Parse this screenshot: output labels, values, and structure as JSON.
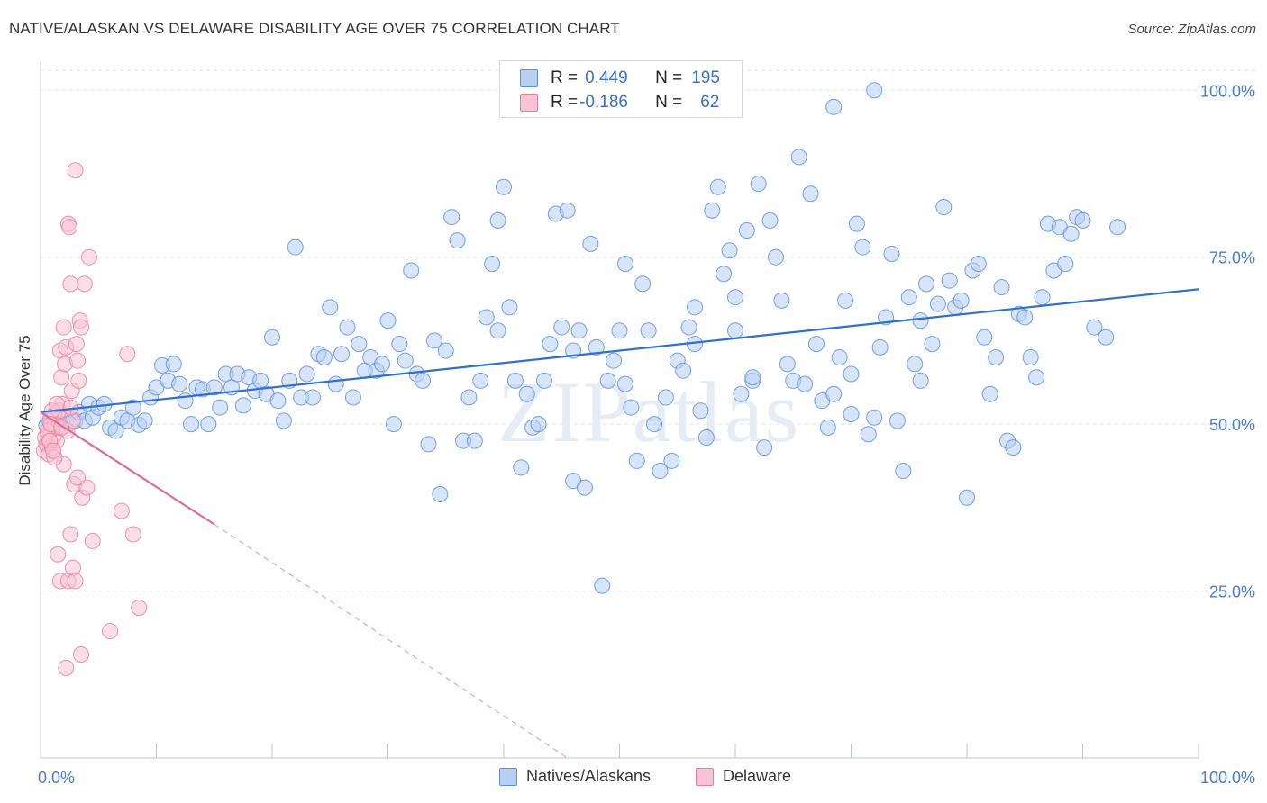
{
  "title": "NATIVE/ALASKAN VS DELAWARE DISABILITY AGE OVER 75 CORRELATION CHART",
  "source": "Source: ZipAtlas.com",
  "watermark": "ZIPatlas",
  "stats": [
    {
      "r_label": "R = ",
      "r_value": "0.449",
      "n_label": "N = ",
      "n_value": "195",
      "color": "#5b8fe0",
      "fill": "#b8d0f4"
    },
    {
      "r_label": "R = ",
      "r_value": "-0.186",
      "n_label": "N = ",
      "n_value": "62",
      "color": "#e57fa0",
      "fill": "#f9c3d4"
    }
  ],
  "chart_data": {
    "type": "scatter",
    "title": "NATIVE/ALASKAN VS DELAWARE DISABILITY AGE OVER 75 CORRELATION CHART",
    "xlabel": "",
    "ylabel": "Disability Age Over 75",
    "xlim": [
      0,
      100
    ],
    "ylim": [
      0,
      103
    ],
    "x_tick_labels": [
      "0.0%",
      "100.0%"
    ],
    "y_tick_labels": [
      "25.0%",
      "50.0%",
      "75.0%",
      "100.0%"
    ],
    "y_ticks": [
      25,
      50,
      75,
      100
    ],
    "grid": true,
    "legend_position": "bottom",
    "series": [
      {
        "name": "Natives/Alaskans",
        "color": "#5b8fe0",
        "fill": "#b8d0f4",
        "trend": {
          "x": [
            0,
            100
          ],
          "y": [
            51.8,
            70.2
          ],
          "style": "solid"
        },
        "points": [
          [
            0.5,
            49.8
          ],
          [
            0.8,
            50.5
          ],
          [
            1.2,
            50.6
          ],
          [
            1.5,
            49.6
          ],
          [
            2.0,
            51.2
          ],
          [
            2.5,
            50.1
          ],
          [
            3.0,
            50.5
          ],
          [
            3.3,
            51.8
          ],
          [
            3.8,
            50.5
          ],
          [
            4.2,
            53.0
          ],
          [
            4.5,
            51.0
          ],
          [
            5.0,
            52.5
          ],
          [
            5.5,
            53.0
          ],
          [
            6.0,
            49.5
          ],
          [
            6.5,
            49.0
          ],
          [
            7.0,
            51.0
          ],
          [
            7.5,
            50.5
          ],
          [
            8.0,
            52.5
          ],
          [
            8.5,
            49.9
          ],
          [
            9.0,
            50.5
          ],
          [
            9.5,
            54.0
          ],
          [
            10.0,
            55.5
          ],
          [
            10.5,
            58.8
          ],
          [
            11.0,
            56.5
          ],
          [
            11.5,
            59.0
          ],
          [
            12.0,
            56.0
          ],
          [
            12.5,
            53.5
          ],
          [
            13.0,
            50.0
          ],
          [
            13.5,
            55.5
          ],
          [
            14.0,
            55.2
          ],
          [
            14.5,
            50.0
          ],
          [
            15.0,
            55.5
          ],
          [
            15.5,
            52.5
          ],
          [
            16.0,
            57.5
          ],
          [
            16.5,
            55.5
          ],
          [
            17.0,
            57.5
          ],
          [
            17.5,
            52.8
          ],
          [
            18.0,
            57.0
          ],
          [
            18.5,
            55.0
          ],
          [
            19.0,
            56.5
          ],
          [
            19.5,
            54.5
          ],
          [
            20.0,
            63.0
          ],
          [
            20.5,
            53.5
          ],
          [
            21.0,
            50.5
          ],
          [
            21.5,
            56.5
          ],
          [
            22.0,
            76.5
          ],
          [
            22.5,
            54.0
          ],
          [
            23.0,
            57.5
          ],
          [
            23.5,
            54.0
          ],
          [
            24.0,
            60.5
          ],
          [
            24.5,
            60.0
          ],
          [
            25.0,
            67.5
          ],
          [
            25.5,
            56.0
          ],
          [
            26.0,
            60.5
          ],
          [
            26.5,
            64.5
          ],
          [
            27.0,
            54.0
          ],
          [
            27.5,
            62.0
          ],
          [
            28.0,
            58.0
          ],
          [
            28.5,
            60.0
          ],
          [
            29.0,
            58.0
          ],
          [
            29.5,
            59.0
          ],
          [
            30.0,
            65.5
          ],
          [
            30.5,
            50.0
          ],
          [
            31.0,
            62.0
          ],
          [
            31.5,
            59.5
          ],
          [
            32.0,
            73.0
          ],
          [
            32.5,
            57.5
          ],
          [
            33.0,
            56.5
          ],
          [
            33.5,
            47.0
          ],
          [
            34.0,
            62.5
          ],
          [
            34.5,
            39.5
          ],
          [
            35.0,
            61.0
          ],
          [
            35.5,
            81.0
          ],
          [
            36.0,
            77.5
          ],
          [
            36.5,
            47.5
          ],
          [
            37.0,
            54.0
          ],
          [
            37.5,
            47.5
          ],
          [
            38.0,
            56.5
          ],
          [
            38.5,
            66.0
          ],
          [
            39.0,
            74.0
          ],
          [
            39.5,
            64.0
          ],
          [
            40.0,
            85.5
          ],
          [
            40.5,
            67.5
          ],
          [
            41.0,
            56.5
          ],
          [
            41.5,
            43.5
          ],
          [
            42.0,
            54.5
          ],
          [
            42.5,
            49.5
          ],
          [
            43.0,
            50.0
          ],
          [
            43.5,
            56.5
          ],
          [
            44.0,
            62.0
          ],
          [
            44.5,
            81.5
          ],
          [
            45.0,
            64.5
          ],
          [
            45.5,
            82.0
          ],
          [
            46.0,
            41.5
          ],
          [
            46.5,
            64.0
          ],
          [
            47.0,
            40.5
          ],
          [
            47.5,
            77.0
          ],
          [
            48.0,
            61.5
          ],
          [
            48.5,
            25.8
          ],
          [
            49.0,
            56.5
          ],
          [
            49.5,
            59.5
          ],
          [
            50.0,
            64.0
          ],
          [
            50.5,
            74.0
          ],
          [
            51.0,
            52.5
          ],
          [
            51.5,
            44.5
          ],
          [
            52.0,
            71.0
          ],
          [
            52.5,
            64.0
          ],
          [
            53.0,
            50.0
          ],
          [
            53.5,
            43.0
          ],
          [
            54.0,
            54.0
          ],
          [
            54.5,
            44.5
          ],
          [
            55.0,
            59.5
          ],
          [
            55.5,
            58.0
          ],
          [
            56.0,
            64.5
          ],
          [
            56.5,
            62.0
          ],
          [
            57.0,
            52.0
          ],
          [
            57.5,
            48.0
          ],
          [
            58.0,
            82.0
          ],
          [
            58.5,
            85.5
          ],
          [
            59.0,
            72.5
          ],
          [
            59.5,
            76.0
          ],
          [
            60.0,
            69.0
          ],
          [
            60.5,
            54.5
          ],
          [
            61.0,
            79.0
          ],
          [
            61.5,
            56.5
          ],
          [
            62.0,
            86.0
          ],
          [
            62.5,
            46.5
          ],
          [
            63.0,
            80.5
          ],
          [
            63.5,
            75.0
          ],
          [
            64.0,
            68.5
          ],
          [
            64.5,
            59.0
          ],
          [
            65.0,
            56.5
          ],
          [
            65.5,
            90.0
          ],
          [
            66.0,
            56.0
          ],
          [
            66.5,
            84.5
          ],
          [
            67.0,
            62.0
          ],
          [
            67.5,
            53.5
          ],
          [
            68.0,
            49.5
          ],
          [
            68.5,
            54.5
          ],
          [
            69.0,
            60.0
          ],
          [
            69.5,
            68.5
          ],
          [
            70.0,
            57.5
          ],
          [
            70.5,
            80.0
          ],
          [
            71.0,
            76.5
          ],
          [
            71.5,
            48.5
          ],
          [
            72.0,
            51.0
          ],
          [
            72.5,
            61.5
          ],
          [
            73.0,
            66.0
          ],
          [
            73.5,
            75.5
          ],
          [
            74.0,
            50.5
          ],
          [
            74.5,
            43.0
          ],
          [
            75.0,
            69.0
          ],
          [
            75.5,
            59.0
          ],
          [
            76.0,
            65.5
          ],
          [
            76.5,
            71.0
          ],
          [
            77.0,
            62.0
          ],
          [
            77.5,
            68.0
          ],
          [
            78.0,
            82.5
          ],
          [
            78.5,
            71.5
          ],
          [
            79.0,
            67.5
          ],
          [
            79.5,
            68.5
          ],
          [
            80.0,
            39.0
          ],
          [
            80.5,
            73.0
          ],
          [
            81.0,
            74.0
          ],
          [
            81.5,
            63.0
          ],
          [
            82.0,
            54.5
          ],
          [
            82.5,
            60.0
          ],
          [
            83.0,
            70.5
          ],
          [
            83.5,
            47.5
          ],
          [
            84.0,
            46.5
          ],
          [
            84.5,
            66.5
          ],
          [
            85.0,
            66.0
          ],
          [
            85.5,
            60.0
          ],
          [
            86.0,
            57.0
          ],
          [
            86.5,
            69.0
          ],
          [
            87.0,
            80.0
          ],
          [
            87.5,
            73.0
          ],
          [
            88.0,
            79.5
          ],
          [
            88.5,
            74.0
          ],
          [
            89.0,
            78.5
          ],
          [
            89.5,
            81.0
          ],
          [
            90.0,
            80.5
          ],
          [
            91.0,
            64.5
          ],
          [
            92.0,
            63.0
          ],
          [
            93.0,
            79.5
          ],
          [
            68.5,
            97.5
          ],
          [
            72.0,
            100.0
          ],
          [
            39.5,
            80.5
          ],
          [
            76.0,
            56.5
          ],
          [
            70.0,
            51.5
          ],
          [
            60.0,
            64.0
          ],
          [
            46.0,
            61.0
          ],
          [
            50.5,
            56.0
          ],
          [
            56.5,
            67.5
          ],
          [
            61.5,
            57.0
          ]
        ]
      },
      {
        "name": "Delaware",
        "color": "#e57fa0",
        "fill": "#f9c3d4",
        "trend": {
          "x": [
            0,
            15
          ],
          "y": [
            51.8,
            35.0
          ],
          "style": "solid",
          "dashed_extension_to": [
            45.5,
            0
          ]
        },
        "points": [
          [
            0.3,
            46.0
          ],
          [
            0.5,
            47.0
          ],
          [
            0.6,
            48.5
          ],
          [
            0.7,
            45.5
          ],
          [
            0.8,
            50.5
          ],
          [
            0.9,
            49.0
          ],
          [
            1.0,
            46.5
          ],
          [
            1.1,
            48.0
          ],
          [
            1.2,
            51.5
          ],
          [
            1.3,
            50.0
          ],
          [
            1.4,
            47.5
          ],
          [
            1.5,
            49.5
          ],
          [
            1.6,
            52.0
          ],
          [
            1.7,
            61.0
          ],
          [
            1.8,
            57.0
          ],
          [
            1.9,
            53.0
          ],
          [
            2.0,
            64.5
          ],
          [
            2.1,
            59.0
          ],
          [
            2.2,
            61.5
          ],
          [
            2.3,
            49.0
          ],
          [
            2.4,
            80.0
          ],
          [
            2.5,
            79.5
          ],
          [
            2.6,
            71.0
          ],
          [
            2.7,
            55.0
          ],
          [
            2.8,
            50.5
          ],
          [
            2.9,
            41.0
          ],
          [
            3.0,
            88.0
          ],
          [
            3.1,
            62.0
          ],
          [
            3.2,
            59.5
          ],
          [
            3.3,
            56.5
          ],
          [
            3.4,
            65.5
          ],
          [
            3.5,
            64.5
          ],
          [
            3.6,
            39.0
          ],
          [
            3.8,
            71.0
          ],
          [
            4.0,
            40.5
          ],
          [
            4.2,
            75.0
          ],
          [
            2.0,
            44.0
          ],
          [
            1.5,
            30.5
          ],
          [
            1.7,
            26.5
          ],
          [
            2.2,
            13.5
          ],
          [
            2.4,
            26.5
          ],
          [
            2.6,
            33.5
          ],
          [
            2.8,
            28.5
          ],
          [
            3.0,
            26.5
          ],
          [
            3.2,
            42.0
          ],
          [
            3.5,
            15.5
          ],
          [
            4.5,
            32.5
          ],
          [
            7.5,
            60.5
          ],
          [
            8.5,
            22.5
          ],
          [
            7.0,
            37.0
          ],
          [
            8.0,
            33.5
          ],
          [
            6.0,
            19.0
          ],
          [
            0.4,
            48.0
          ],
          [
            0.6,
            49.0
          ],
          [
            0.8,
            47.5
          ],
          [
            1.0,
            52.0
          ],
          [
            1.2,
            45.0
          ],
          [
            0.9,
            50.0
          ],
          [
            1.1,
            46.0
          ],
          [
            1.4,
            53.0
          ],
          [
            2.6,
            52.5
          ],
          [
            1.8,
            49.5
          ]
        ]
      }
    ]
  },
  "legend": [
    {
      "label": "Natives/Alaskans",
      "color": "#5b8fe0",
      "fill": "#b8d0f4"
    },
    {
      "label": "Delaware",
      "color": "#e57fa0",
      "fill": "#f9c3d4"
    }
  ]
}
